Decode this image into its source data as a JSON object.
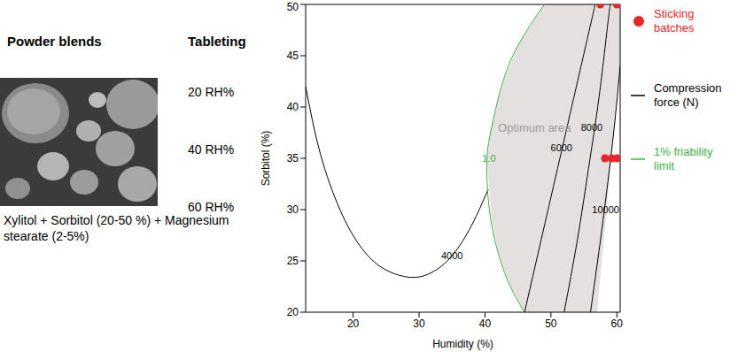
{
  "left_panel": {
    "headers": [
      "Powder blends",
      "Tableting"
    ],
    "tableting": [
      "20 RH%",
      "40 RH%",
      "60 RH%"
    ],
    "caption": "Xylitol + Sorbitol (20-50 %) + Magnesium stearate (2-5%)"
  },
  "chart_data": {
    "type": "contour",
    "x_label": "Humidity (%)",
    "y_label": "Sorbitol (%)",
    "xlim": [
      12.8,
      60.5
    ],
    "xticks": [
      20,
      30,
      40,
      50,
      60
    ],
    "ylim": [
      20,
      50
    ],
    "yticks": [
      20,
      25,
      30,
      35,
      40,
      45,
      50
    ],
    "legend": "right",
    "series": [
      {
        "name": "Sticking batches",
        "type": "scatter",
        "marker": "circle",
        "color": "#e8262a",
        "x": [
          57.5,
          60,
          58.2,
          59.2,
          60
        ],
        "y": [
          50,
          50,
          35,
          35,
          35
        ]
      },
      {
        "name": "Compression force (N)",
        "type": "line",
        "color": "#000000",
        "contours": [
          {
            "level": 4000,
            "x": [
              12.8,
              15,
              18,
              21,
              24,
              27,
              29.5,
              32,
              35,
              38,
              40.5
            ],
            "y": [
              42,
              35.5,
              30,
              26.5,
              24.5,
              23.6,
              23.4,
              23.9,
              25.5,
              28.5,
              32
            ],
            "label_x": 35,
            "label_y": 25.5
          },
          {
            "level": 6000,
            "x": [
              46,
              48.5,
              51,
              53.5,
              56,
              56.7
            ],
            "y": [
              20,
              27,
              34,
              41,
              48,
              50
            ],
            "label_x": 51.6,
            "label_y": 36
          },
          {
            "level": 8000,
            "x": [
              52,
              54,
              55.7,
              57.3,
              58.6,
              59
            ],
            "y": [
              20,
              27,
              34,
              41,
              48,
              50
            ],
            "label_x": 56.2,
            "label_y": 38
          },
          {
            "level": 10000,
            "x": [
              56,
              57.3,
              58.5,
              59.6,
              60.5
            ],
            "y": [
              20,
              26,
              32,
              38,
              44
            ],
            "label_x": 58.3,
            "label_y": 30
          }
        ]
      },
      {
        "name": "1% friability limit",
        "type": "line",
        "color": "#3cb043",
        "contours": [
          {
            "level": {
              "value": 1,
              "label": "1.0"
            },
            "x": [
              49,
              45,
              42.5,
              41,
              40.3,
              40.5,
              41.5,
              43.5,
              46
            ],
            "y": [
              50,
              46,
              42,
              38,
              35,
              31,
              27,
              23,
              20
            ],
            "label_x": 40.6,
            "label_y": 35
          }
        ]
      }
    ],
    "optimum_area": {
      "label": "Optimum area",
      "color": "#e4e0e0",
      "text_color": "#9a9a9a",
      "x": [
        40.3,
        41,
        42,
        43,
        44,
        45,
        46,
        47,
        48,
        49,
        50,
        52,
        54,
        56,
        57,
        58,
        59,
        60,
        60.5
      ],
      "low": [
        35,
        29,
        26,
        24,
        22.4,
        21.2,
        20,
        20,
        20,
        20,
        20,
        20,
        20,
        20,
        20,
        26.9,
        33.7,
        40.6,
        44
      ],
      "high": [
        35,
        38,
        40.7,
        42.8,
        44.4,
        46,
        47,
        48,
        49,
        50,
        50,
        50,
        50,
        50,
        50,
        50,
        50,
        50,
        50
      ],
      "label_x": 47.5,
      "label_y": 38
    }
  }
}
